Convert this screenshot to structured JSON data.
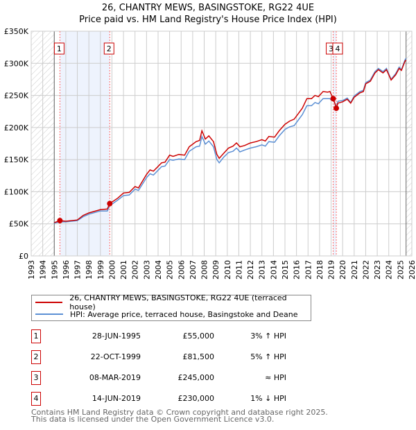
{
  "chart_data": {
    "type": "line",
    "title": "26, CHANTRY MEWS, BASINGSTOKE, RG22 4UE",
    "subtitle": "Price paid vs. HM Land Registry's House Price Index (HPI)",
    "xlim": [
      1993,
      2026
    ],
    "ylim": [
      0,
      350000
    ],
    "y_ticks": [
      {
        "v": 0,
        "label": "£0"
      },
      {
        "v": 50000,
        "label": "£50K"
      },
      {
        "v": 100000,
        "label": "£100K"
      },
      {
        "v": 150000,
        "label": "£150K"
      },
      {
        "v": 200000,
        "label": "£200K"
      },
      {
        "v": 250000,
        "label": "£250K"
      },
      {
        "v": 300000,
        "label": "£300K"
      },
      {
        "v": 350000,
        "label": "£350K"
      }
    ],
    "x_ticks": [
      "1993",
      "1994",
      "1995",
      "1996",
      "1997",
      "1998",
      "1999",
      "2000",
      "2001",
      "2002",
      "2003",
      "2004",
      "2005",
      "2006",
      "2007",
      "2008",
      "2009",
      "2010",
      "2011",
      "2012",
      "2013",
      "2014",
      "2015",
      "2016",
      "2017",
      "2018",
      "2019",
      "2020",
      "2021",
      "2022",
      "2023",
      "2024",
      "2025",
      "2026"
    ],
    "grid": true,
    "data_range": [
      1995.0,
      2025.5
    ],
    "series": [
      {
        "name": "26, CHANTRY MEWS, BASINGSTOKE, RG22 4UE (terraced house)",
        "color": "#cc0000",
        "x": [
          1995.0,
          1995.5,
          1996,
          1997,
          1997.5,
          1998,
          1999,
          1999.6,
          1999.8,
          2000.5,
          2001,
          2001.5,
          2002,
          2002.3,
          2003,
          2003.3,
          2003.6,
          2004.3,
          2004.6,
          2005,
          2005.3,
          2005.8,
          2006.3,
          2006.7,
          2007.3,
          2007.6,
          2007.8,
          2008.1,
          2008.4,
          2008.8,
          2009.1,
          2009.3,
          2009.7,
          2010.1,
          2010.5,
          2010.8,
          2011.1,
          2011.5,
          2012,
          2012.5,
          2013,
          2013.3,
          2013.6,
          2014.1,
          2014.5,
          2015,
          2015.4,
          2015.8,
          2016.5,
          2016.9,
          2017.3,
          2017.6,
          2017.9,
          2018.3,
          2018.7,
          2018.9,
          2019.0,
          2019.2,
          2019.45,
          2019.6,
          2020,
          2020.4,
          2020.7,
          2021,
          2021.5,
          2021.8,
          2022,
          2022.4,
          2022.8,
          2023.1,
          2023.5,
          2023.8,
          2024.2,
          2024.6,
          2024.9,
          2025.1,
          2025.4,
          2025.5
        ],
        "y": [
          52000,
          55000,
          54000,
          56000,
          63000,
          67000,
          72000,
          73000,
          81500,
          90000,
          98000,
          99000,
          108000,
          106000,
          127000,
          134000,
          132000,
          145000,
          146000,
          157000,
          155000,
          158000,
          157000,
          170000,
          178000,
          180000,
          195000,
          182000,
          187000,
          178000,
          158000,
          152000,
          160000,
          168000,
          171000,
          176000,
          170000,
          172000,
          176000,
          178000,
          181000,
          179000,
          186000,
          185000,
          195000,
          205000,
          210000,
          213000,
          230000,
          245000,
          245000,
          250000,
          248000,
          256000,
          255000,
          256000,
          252000,
          245000,
          230000,
          238000,
          240000,
          244000,
          238000,
          247000,
          254000,
          256000,
          268000,
          272000,
          285000,
          290000,
          285000,
          290000,
          274000,
          282000,
          292000,
          289000,
          303000,
          305000
        ]
      },
      {
        "name": "HPI: Average price, terraced house, Basingstoke and Deane",
        "color": "#5b8fd4",
        "x": [
          1995.0,
          1995.5,
          1996,
          1997,
          1997.5,
          1998,
          1999,
          1999.6,
          1999.8,
          2000.5,
          2001,
          2001.5,
          2002,
          2002.3,
          2003,
          2003.3,
          2003.6,
          2004.3,
          2004.6,
          2005,
          2005.3,
          2005.8,
          2006.3,
          2006.7,
          2007.3,
          2007.6,
          2007.8,
          2008.1,
          2008.4,
          2008.8,
          2009.1,
          2009.3,
          2009.7,
          2010.1,
          2010.5,
          2010.8,
          2011.1,
          2011.5,
          2012,
          2012.5,
          2013,
          2013.3,
          2013.6,
          2014.1,
          2014.5,
          2015,
          2015.4,
          2015.8,
          2016.5,
          2016.9,
          2017.3,
          2017.6,
          2017.9,
          2018.3,
          2018.7,
          2018.9,
          2019.0,
          2019.2,
          2019.45,
          2019.6,
          2020,
          2020.4,
          2020.7,
          2021,
          2021.5,
          2021.8,
          2022,
          2022.4,
          2022.8,
          2023.1,
          2023.5,
          2023.8,
          2024.2,
          2024.6,
          2024.9,
          2025.1,
          2025.4,
          2025.5
        ],
        "y": [
          51000,
          53000,
          53000,
          55000,
          61000,
          65000,
          70000,
          70000,
          78000,
          87000,
          94000,
          95000,
          104000,
          102000,
          122000,
          128000,
          126000,
          139000,
          140000,
          150000,
          149000,
          151000,
          150000,
          163000,
          170000,
          171000,
          186000,
          174000,
          179000,
          170000,
          150000,
          145000,
          154000,
          161000,
          163000,
          168000,
          162000,
          165000,
          168000,
          170000,
          173000,
          171000,
          178000,
          177000,
          187000,
          197000,
          201000,
          203000,
          220000,
          234000,
          234000,
          239000,
          237000,
          245000,
          245000,
          245000,
          243000,
          243000,
          232000,
          241000,
          242000,
          246000,
          239000,
          249000,
          256000,
          258000,
          270000,
          274000,
          287000,
          292000,
          287000,
          292000,
          275000,
          284000,
          294000,
          290000,
          305000,
          308000
        ]
      }
    ],
    "sales": [
      {
        "num": "1",
        "x": 1995.49,
        "y": 55000,
        "date": "28-JUN-1995",
        "price": "£55,000",
        "hpi": "3% ↑ HPI"
      },
      {
        "num": "2",
        "x": 1999.81,
        "y": 81500,
        "date": "22-OCT-1999",
        "price": "£81,500",
        "hpi": "5% ↑ HPI"
      },
      {
        "num": "3",
        "x": 2019.18,
        "y": 245000,
        "date": "08-MAR-2019",
        "price": "£245,000",
        "hpi": "≈ HPI"
      },
      {
        "num": "4",
        "x": 2019.45,
        "y": 230000,
        "date": "14-JUN-2019",
        "price": "£230,000",
        "hpi": "1% ↓ HPI"
      }
    ],
    "legend_placement": "bottom",
    "footer": [
      "Contains HM Land Registry data © Crown copyright and database right 2025.",
      "This data is licensed under the Open Government Licence v3.0."
    ]
  }
}
